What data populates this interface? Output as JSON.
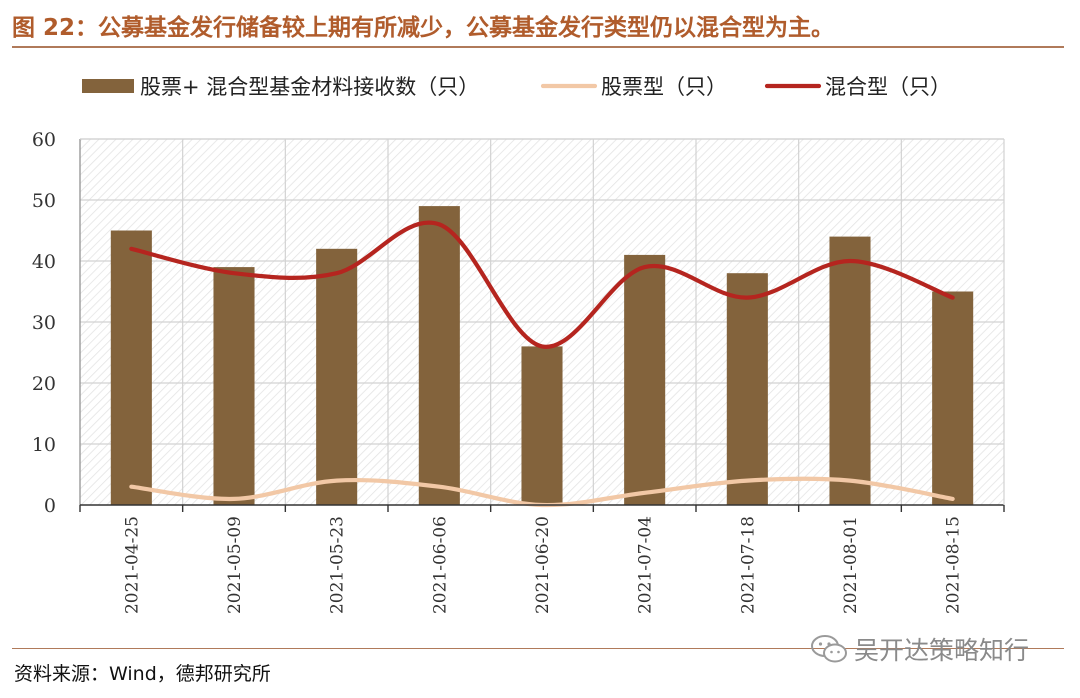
{
  "header": {
    "title": "图 22：公募基金发行储备较上期有所减少，公募基金发行类型仍以混合型为主。"
  },
  "footer": {
    "source": "资料来源：Wind，德邦研究所",
    "watermark": "吴开达策略知行",
    "watermark_icon": "wechat-icon"
  },
  "chart_data": {
    "type": "bar",
    "categories": [
      "2021-04-25",
      "2021-05-09",
      "2021-05-23",
      "2021-06-06",
      "2021-06-20",
      "2021-07-04",
      "2021-07-18",
      "2021-08-01",
      "2021-08-15"
    ],
    "series": [
      {
        "name": "股票+ 混合型基金材料接收数（只）",
        "kind": "bar",
        "color": "#83633c",
        "values": [
          45,
          39,
          42,
          49,
          26,
          41,
          38,
          44,
          35
        ]
      },
      {
        "name": "股票型（只）",
        "kind": "line",
        "color": "#f2c8a6",
        "values": [
          3,
          1,
          4,
          3,
          0,
          2,
          4,
          4,
          1
        ]
      },
      {
        "name": "混合型（只）",
        "kind": "line",
        "color": "#b5251f",
        "values": [
          42,
          38,
          38,
          46,
          26,
          39,
          34,
          40,
          34
        ]
      }
    ],
    "ylim": [
      0,
      60
    ],
    "yticks": [
      0,
      10,
      20,
      30,
      40,
      50,
      60
    ],
    "xlabel": "",
    "ylabel": "",
    "grid": true,
    "plot_background": "hatched",
    "legend_position": "top"
  }
}
